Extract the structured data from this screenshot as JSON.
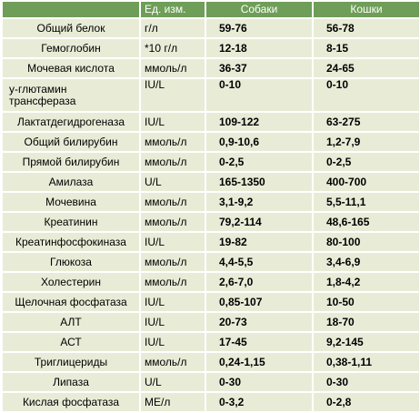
{
  "header": {
    "parameter": "",
    "unit": "Ед. изм.",
    "dogs": "Собаки",
    "cats": "Кошки"
  },
  "rows": [
    {
      "name": "Общий белок",
      "unit": "г/л",
      "dogs": "59-76",
      "cats": "56-78"
    },
    {
      "name": "Гемоглобин",
      "unit": "*10 г/л",
      "dogs": "12-18",
      "cats": "8-15"
    },
    {
      "name": "Мочевая кислота",
      "unit": "ммоль/л",
      "dogs": "36-37",
      "cats": "24-65"
    },
    {
      "name": "у-глютамин трансфераза",
      "unit": "IU/L",
      "dogs": "0-10",
      "cats": "0-10"
    },
    {
      "name": "Лактатдегидрогеназа",
      "unit": "IU/L",
      "dogs": "109-122",
      "cats": "63-275"
    },
    {
      "name": "Общий билирубин",
      "unit": "ммоль/л",
      "dogs": "0,9-10,6",
      "cats": "1,2-7,9"
    },
    {
      "name": "Прямой билирубин",
      "unit": "ммоль/л",
      "dogs": "0-2,5",
      "cats": "0-2,5"
    },
    {
      "name": "Амилаза",
      "unit": "U/L",
      "dogs": "165-1350",
      "cats": "400-700"
    },
    {
      "name": "Мочевина",
      "unit": "ммоль/л",
      "dogs": "3,1-9,2",
      "cats": "5,5-11,1"
    },
    {
      "name": "Креатинин",
      "unit": "ммоль/л",
      "dogs": "79,2-114",
      "cats": "48,6-165"
    },
    {
      "name": "Креатинфосфокиназа",
      "unit": "IU/L",
      "dogs": "19-82",
      "cats": "80-100"
    },
    {
      "name": "Глюкоза",
      "unit": "ммоль/л",
      "dogs": "4,4-5,5",
      "cats": "3,4-6,9"
    },
    {
      "name": "Холестерин",
      "unit": "ммоль/л",
      "dogs": "2,6-7,0",
      "cats": "1,8-4,2"
    },
    {
      "name": "Щелочная фосфатаза",
      "unit": "IU/L",
      "dogs": "0,85-107",
      "cats": "10-50"
    },
    {
      "name": "АЛТ",
      "unit": "IU/L",
      "dogs": "20-73",
      "cats": "18-70"
    },
    {
      "name": "АСТ",
      "unit": "IU/L",
      "dogs": "17-45",
      "cats": "9,2-145"
    },
    {
      "name": "Триглицериды",
      "unit": "ммоль/л",
      "dogs": "0,24-1,15",
      "cats": "0,38-1,11"
    },
    {
      "name": "Липаза",
      "unit": "U/L",
      "dogs": "0-30",
      "cats": "0-30"
    },
    {
      "name": "Кислая фосфатаза",
      "unit": "МЕ/л",
      "dogs": "0-3,2",
      "cats": "0-2,8"
    }
  ]
}
